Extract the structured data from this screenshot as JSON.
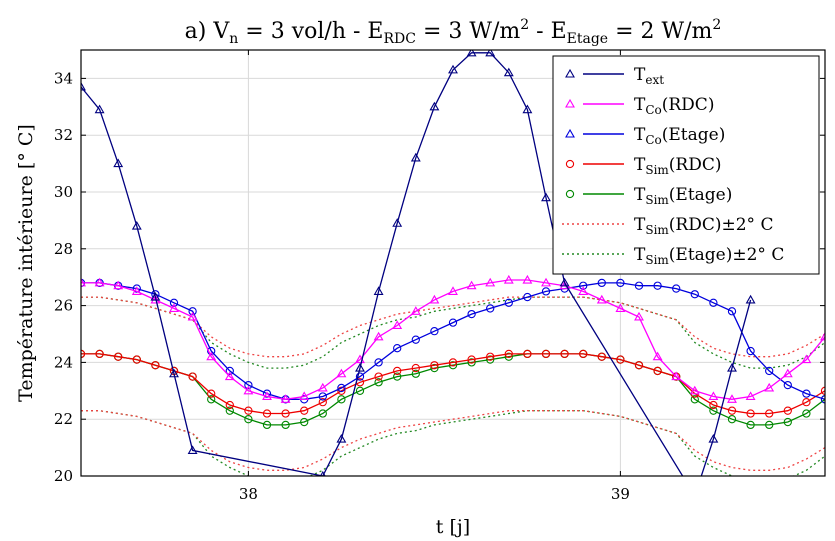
{
  "chart_data": {
    "type": "line",
    "title": {
      "prefix": "a) V",
      "sub_n": "n",
      "part2": " = 3 vol/h - E",
      "sub_rdc": "RDC",
      "part3": " = 3 W/m",
      "sup1": "2",
      "part4": " - E",
      "sub_etage": "Etage",
      "part5": " = 2 W/m",
      "sup2": "2"
    },
    "xlabel": "t [j]",
    "ylabel": "Température intérieure [° C]",
    "xlim": [
      37.55,
      39.55
    ],
    "ylim": [
      20,
      35
    ],
    "x_ticks": [
      38,
      39
    ],
    "x_tick_labels": [
      "38",
      "39"
    ],
    "y_ticks": [
      20,
      22,
      24,
      26,
      28,
      30,
      32,
      34
    ],
    "y_tick_labels": [
      "20",
      "22",
      "24",
      "26",
      "28",
      "30",
      "32",
      "34"
    ],
    "grid": true,
    "legend_position": "top-right",
    "colors": {
      "text": "#000080",
      "tco_rdc": "#ff00ff",
      "tco_etage": "#0000dd",
      "tsim_rdc": "#ee0000",
      "tsim_etage": "#008800",
      "band_rdc": "#ee4444",
      "band_etage": "#228822"
    },
    "legend": [
      {
        "main": "T",
        "sub": "ext",
        "rest": ""
      },
      {
        "main": "T",
        "sub": "Co",
        "rest": "(RDC)"
      },
      {
        "main": "T",
        "sub": "Co",
        "rest": "(Etage)"
      },
      {
        "main": "T",
        "sub": "Sim",
        "rest": "(RDC)"
      },
      {
        "main": "T",
        "sub": "Sim",
        "rest": "(Etage)"
      },
      {
        "main": "T",
        "sub": "Sim",
        "rest": "(RDC)±2° C"
      },
      {
        "main": "T",
        "sub": "Sim",
        "rest": "(Etage)±2° C"
      }
    ],
    "series": [
      {
        "name": "Text",
        "x": [
          37.525,
          37.55,
          37.6,
          37.65,
          37.7,
          37.75,
          37.8,
          37.85,
          38.2,
          38.25,
          38.3,
          38.35,
          38.4,
          38.45,
          38.5,
          38.55,
          38.6,
          38.65,
          38.7,
          38.75,
          38.8,
          38.85,
          39.2,
          39.25,
          39.3,
          39.35
        ],
        "y": [
          34.6,
          33.7,
          32.9,
          31.0,
          28.8,
          26.3,
          23.6,
          20.9,
          20.0,
          21.3,
          23.8,
          26.5,
          28.9,
          31.2,
          33.0,
          34.3,
          34.9,
          34.9,
          34.2,
          32.9,
          29.8,
          26.8,
          19.3,
          21.3,
          23.8,
          26.2
        ]
      },
      {
        "name": "TCo(RDC)",
        "x": [
          37.55,
          37.6,
          37.65,
          37.7,
          37.75,
          37.8,
          37.85,
          37.9,
          37.95,
          38.0,
          38.05,
          38.1,
          38.15,
          38.2,
          38.25,
          38.3,
          38.35,
          38.4,
          38.45,
          38.5,
          38.55,
          38.6,
          38.65,
          38.7,
          38.75,
          38.8,
          38.85,
          38.9,
          38.95,
          39.0,
          39.05,
          39.1,
          39.15,
          39.2,
          39.25,
          39.3,
          39.35,
          39.4,
          39.45,
          39.5,
          39.55
        ],
        "y": [
          26.8,
          26.8,
          26.7,
          26.5,
          26.2,
          25.9,
          25.6,
          24.2,
          23.5,
          23.0,
          22.8,
          22.7,
          22.8,
          23.1,
          23.6,
          24.1,
          24.9,
          25.3,
          25.8,
          26.2,
          26.5,
          26.7,
          26.8,
          26.9,
          26.9,
          26.8,
          26.7,
          26.5,
          26.2,
          25.9,
          25.6,
          24.2,
          23.5,
          23.0,
          22.8,
          22.7,
          22.8,
          23.1,
          23.6,
          24.1,
          24.9
        ]
      },
      {
        "name": "TCo(Etage)",
        "x": [
          37.55,
          37.6,
          37.65,
          37.7,
          37.75,
          37.8,
          37.85,
          37.9,
          37.95,
          38.0,
          38.05,
          38.1,
          38.15,
          38.2,
          38.25,
          38.3,
          38.35,
          38.4,
          38.45,
          38.5,
          38.55,
          38.6,
          38.65,
          38.7,
          38.75,
          38.8,
          38.85,
          38.9,
          38.95,
          39.0,
          39.05,
          39.1,
          39.15,
          39.2,
          39.25,
          39.3,
          39.35,
          39.4,
          39.45,
          39.5,
          39.55
        ],
        "y": [
          26.8,
          26.8,
          26.7,
          26.6,
          26.4,
          26.1,
          25.8,
          24.4,
          23.7,
          23.2,
          22.9,
          22.7,
          22.7,
          22.8,
          23.1,
          23.5,
          24.0,
          24.5,
          24.8,
          25.1,
          25.4,
          25.7,
          25.9,
          26.1,
          26.3,
          26.5,
          26.6,
          26.7,
          26.8,
          26.8,
          26.7,
          26.7,
          26.6,
          26.4,
          26.1,
          25.8,
          24.4,
          23.7,
          23.2,
          22.9,
          22.7
        ]
      },
      {
        "name": "TSim(RDC)",
        "x": [
          37.55,
          37.6,
          37.65,
          37.7,
          37.75,
          37.8,
          37.85,
          37.9,
          37.95,
          38.0,
          38.05,
          38.1,
          38.15,
          38.2,
          38.25,
          38.3,
          38.35,
          38.4,
          38.45,
          38.5,
          38.55,
          38.6,
          38.65,
          38.7,
          38.75,
          38.8,
          38.85,
          38.9,
          38.95,
          39.0,
          39.05,
          39.1,
          39.15,
          39.2,
          39.25,
          39.3,
          39.35,
          39.4,
          39.45,
          39.5,
          39.55
        ],
        "y": [
          24.3,
          24.3,
          24.2,
          24.1,
          23.9,
          23.7,
          23.5,
          22.9,
          22.5,
          22.3,
          22.2,
          22.2,
          22.3,
          22.6,
          23.0,
          23.3,
          23.5,
          23.7,
          23.8,
          23.9,
          24.0,
          24.1,
          24.2,
          24.3,
          24.3,
          24.3,
          24.3,
          24.3,
          24.2,
          24.1,
          23.9,
          23.7,
          23.5,
          22.9,
          22.5,
          22.3,
          22.2,
          22.2,
          22.3,
          22.6,
          23.0
        ]
      },
      {
        "name": "TSim(Etage)",
        "x": [
          37.55,
          37.6,
          37.65,
          37.7,
          37.75,
          37.8,
          37.85,
          37.9,
          37.95,
          38.0,
          38.05,
          38.1,
          38.15,
          38.2,
          38.25,
          38.3,
          38.35,
          38.4,
          38.45,
          38.5,
          38.55,
          38.6,
          38.65,
          38.7,
          38.75,
          38.8,
          38.85,
          38.9,
          38.95,
          39.0,
          39.05,
          39.1,
          39.15,
          39.2,
          39.25,
          39.3,
          39.35,
          39.4,
          39.45,
          39.5,
          39.55
        ],
        "y": [
          24.3,
          24.3,
          24.2,
          24.1,
          23.9,
          23.7,
          23.5,
          22.7,
          22.3,
          22.0,
          21.8,
          21.8,
          21.9,
          22.2,
          22.7,
          23.0,
          23.3,
          23.5,
          23.6,
          23.8,
          23.9,
          24.0,
          24.1,
          24.2,
          24.3,
          24.3,
          24.3,
          24.3,
          24.2,
          24.1,
          23.9,
          23.7,
          23.5,
          22.7,
          22.3,
          22.0,
          21.8,
          21.8,
          21.9,
          22.2,
          22.7
        ]
      }
    ],
    "band_profile": {
      "x": [
        37.55,
        37.6,
        37.65,
        37.7,
        37.75,
        37.8,
        37.85,
        37.9,
        37.95,
        38.0,
        38.05,
        38.1,
        38.15,
        38.2,
        38.25,
        38.3,
        38.35,
        38.4,
        38.45,
        38.5,
        38.55,
        38.6,
        38.65,
        38.7,
        38.75,
        38.8,
        38.85,
        38.9,
        38.95,
        39.0,
        39.05,
        39.1,
        39.15,
        39.2,
        39.25,
        39.3,
        39.35,
        39.4,
        39.45,
        39.5,
        39.55
      ],
      "rdc_upper": [
        26.3,
        26.3,
        26.2,
        26.1,
        25.9,
        25.7,
        25.5,
        24.9,
        24.5,
        24.3,
        24.2,
        24.2,
        24.3,
        24.6,
        25.0,
        25.3,
        25.5,
        25.7,
        25.8,
        25.9,
        26.0,
        26.1,
        26.2,
        26.3,
        26.3,
        26.3,
        26.3,
        26.3,
        26.2,
        26.1,
        25.9,
        25.7,
        25.5,
        24.9,
        24.5,
        24.3,
        24.2,
        24.2,
        24.3,
        24.6,
        25.0
      ],
      "rdc_lower": [
        22.3,
        22.3,
        22.2,
        22.1,
        21.9,
        21.7,
        21.5,
        20.9,
        20.5,
        20.3,
        20.2,
        20.2,
        20.3,
        20.6,
        21.0,
        21.3,
        21.5,
        21.7,
        21.8,
        21.9,
        22.0,
        22.1,
        22.2,
        22.3,
        22.3,
        22.3,
        22.3,
        22.3,
        22.2,
        22.1,
        21.9,
        21.7,
        21.5,
        20.9,
        20.5,
        20.3,
        20.2,
        20.2,
        20.3,
        20.6,
        21.0
      ],
      "etage_upper": [
        26.3,
        26.3,
        26.2,
        26.1,
        25.9,
        25.7,
        25.5,
        24.7,
        24.3,
        24.0,
        23.8,
        23.8,
        23.9,
        24.2,
        24.7,
        25.0,
        25.3,
        25.5,
        25.6,
        25.8,
        25.9,
        26.0,
        26.1,
        26.2,
        26.3,
        26.3,
        26.3,
        26.3,
        26.2,
        26.1,
        25.9,
        25.7,
        25.5,
        24.7,
        24.3,
        24.0,
        23.8,
        23.8,
        23.9,
        24.2,
        24.7
      ],
      "etage_lower": [
        22.3,
        22.3,
        22.2,
        22.1,
        21.9,
        21.7,
        21.5,
        20.7,
        20.3,
        20.0,
        19.8,
        19.8,
        19.9,
        20.2,
        20.7,
        21.0,
        21.3,
        21.5,
        21.6,
        21.8,
        21.9,
        22.0,
        22.1,
        22.2,
        22.3,
        22.3,
        22.3,
        22.3,
        22.2,
        22.1,
        21.9,
        21.7,
        21.5,
        20.7,
        20.3,
        20.0,
        19.8,
        19.8,
        19.9,
        20.2,
        20.7
      ]
    }
  }
}
